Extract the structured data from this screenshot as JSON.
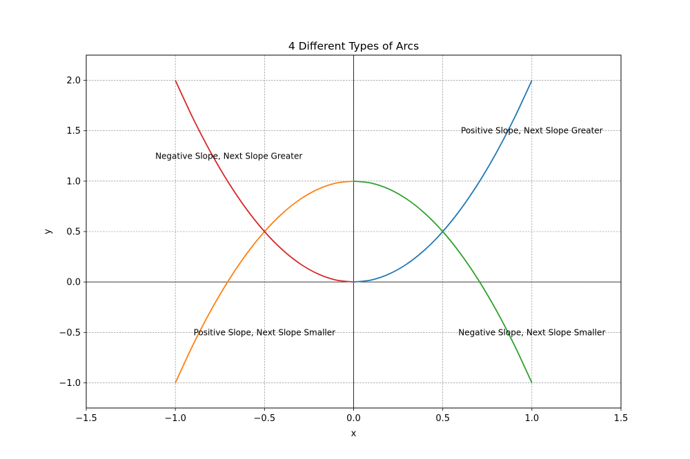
{
  "chart_data": {
    "type": "line",
    "title": "4 Different Types of Arcs",
    "xlabel": "x",
    "ylabel": "y",
    "xlim": [
      -1.5,
      1.5
    ],
    "ylim": [
      -1.25,
      2.25
    ],
    "xticks": [
      -1.5,
      -1.0,
      -0.5,
      0.0,
      0.5,
      1.0,
      1.5
    ],
    "xtick_labels": [
      "−1.5",
      "−1.0",
      "−0.5",
      "0.0",
      "0.5",
      "1.0",
      "1.5"
    ],
    "yticks": [
      -1.0,
      -0.5,
      0.0,
      0.5,
      1.0,
      1.5,
      2.0
    ],
    "ytick_labels": [
      "−1.0",
      "−0.5",
      "0.0",
      "0.5",
      "1.0",
      "1.5",
      "2.0"
    ],
    "grid": true,
    "series": [
      {
        "color": "#1f77b4",
        "x": [
          0.0,
          0.1,
          0.2,
          0.3,
          0.4,
          0.5,
          0.6,
          0.7,
          0.8,
          0.9,
          1.0
        ],
        "y": [
          0.0,
          0.02,
          0.08,
          0.18,
          0.32,
          0.5,
          0.72,
          0.98,
          1.28,
          1.62,
          2.0
        ]
      },
      {
        "color": "#ff7f0e",
        "x": [
          -1.0,
          -0.9,
          -0.8,
          -0.7,
          -0.6,
          -0.5,
          -0.4,
          -0.3,
          -0.2,
          -0.1,
          0.0
        ],
        "y": [
          -1.0,
          -0.62,
          -0.28,
          0.02,
          0.28,
          0.5,
          0.68,
          0.82,
          0.92,
          0.98,
          1.0
        ]
      },
      {
        "color": "#2ca02c",
        "x": [
          0.0,
          0.1,
          0.2,
          0.3,
          0.4,
          0.5,
          0.6,
          0.7,
          0.8,
          0.9,
          1.0
        ],
        "y": [
          1.0,
          0.98,
          0.92,
          0.82,
          0.68,
          0.5,
          0.28,
          0.02,
          -0.28,
          -0.62,
          -1.0
        ]
      },
      {
        "color": "#d62728",
        "x": [
          -1.0,
          -0.9,
          -0.8,
          -0.7,
          -0.6,
          -0.5,
          -0.4,
          -0.3,
          -0.2,
          -0.1,
          0.0
        ],
        "y": [
          2.0,
          1.62,
          1.28,
          0.98,
          0.72,
          0.5,
          0.32,
          0.18,
          0.08,
          0.02,
          0.0
        ]
      }
    ],
    "annotations": [
      {
        "text": "Positive Slope, Next Slope Greater",
        "x": 1.0,
        "y": 1.5
      },
      {
        "text": "Positive Slope, Next Slope Smaller",
        "x": -0.5,
        "y": -0.5
      },
      {
        "text": "Negative Slope, Next Slope Greater",
        "x": -0.7,
        "y": 1.25
      },
      {
        "text": "Negative Slope, Next Slope Smaller",
        "x": 1.0,
        "y": -0.5
      }
    ]
  }
}
